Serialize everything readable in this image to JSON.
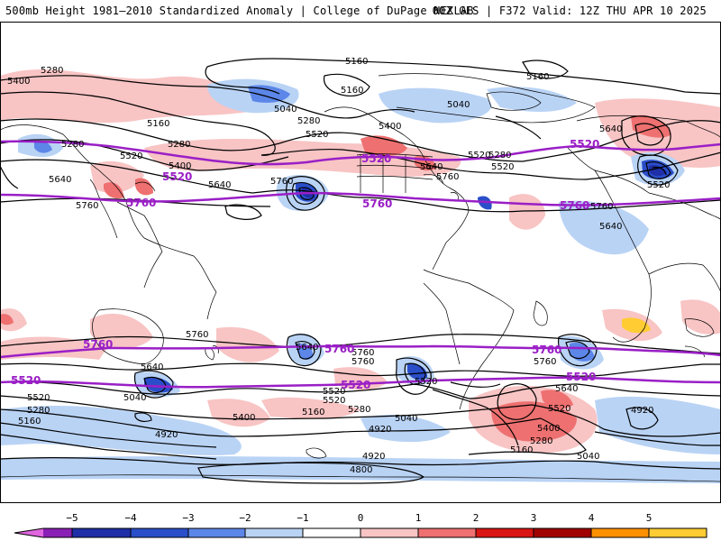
{
  "header": {
    "title": "500mb Height 1981–2010 Standardized Anomaly | College of DuPage NEXLAB",
    "run_info": "00Z GFS | F372 Valid: 12Z THU APR 10 2025"
  },
  "colorbar": {
    "ticks": [
      "−5",
      "−4",
      "−3",
      "−2",
      "−1",
      "0",
      "1",
      "2",
      "3",
      "4",
      "5"
    ],
    "colors": [
      "#e066e0",
      "#8a1fb5",
      "#1f2fa8",
      "#2a4ec9",
      "#5c86e8",
      "#b9d3f5",
      "#ffffff",
      "#f8c4c4",
      "#ee7070",
      "#d81414",
      "#a00000",
      "#ff9000",
      "#ffcc33"
    ]
  },
  "contour_labels": [
    {
      "text": "5160"
    },
    {
      "text": "5160"
    },
    {
      "text": "5160"
    },
    {
      "text": "5160"
    },
    {
      "text": "5040"
    },
    {
      "text": "5040"
    },
    {
      "text": "5280"
    },
    {
      "text": "5280"
    },
    {
      "text": "5400"
    },
    {
      "text": "5400"
    },
    {
      "text": "5280"
    },
    {
      "text": "5280"
    },
    {
      "text": "5520"
    },
    {
      "text": "5400"
    },
    {
      "text": "5520"
    },
    {
      "text": "5640"
    },
    {
      "text": "5640"
    },
    {
      "text": "5760"
    },
    {
      "text": "5760"
    },
    {
      "text": "5640"
    },
    {
      "text": "5520"
    },
    {
      "text": "5520"
    },
    {
      "text": "5640"
    },
    {
      "text": "5760"
    },
    {
      "text": "5760"
    },
    {
      "text": "5280"
    },
    {
      "text": "5520"
    },
    {
      "text": "5760"
    },
    {
      "text": "5640"
    },
    {
      "text": "5760"
    },
    {
      "text": "5640"
    },
    {
      "text": "5040"
    },
    {
      "text": "5520"
    },
    {
      "text": "5280"
    },
    {
      "text": "5160"
    },
    {
      "text": "5400"
    },
    {
      "text": "5520"
    },
    {
      "text": "5280"
    },
    {
      "text": "5160"
    },
    {
      "text": "5040"
    },
    {
      "text": "4920"
    },
    {
      "text": "4920"
    },
    {
      "text": "4920"
    },
    {
      "text": "4800"
    },
    {
      "text": "5640"
    },
    {
      "text": "5520"
    },
    {
      "text": "5400"
    },
    {
      "text": "5280"
    },
    {
      "text": "5160"
    },
    {
      "text": "5040"
    },
    {
      "text": "4920"
    },
    {
      "text": "5760"
    },
    {
      "text": "5520"
    },
    {
      "text": "5760"
    },
    {
      "text": "5520"
    },
    {
      "text": "5640"
    }
  ],
  "highlight_labels": [
    {
      "text": "5520"
    },
    {
      "text": "5760"
    },
    {
      "text": "5520"
    },
    {
      "text": "5760"
    },
    {
      "text": "5520"
    },
    {
      "text": "5760"
    },
    {
      "text": "5520"
    },
    {
      "text": "5760"
    },
    {
      "text": "5760"
    },
    {
      "text": "5760"
    },
    {
      "text": "5520"
    },
    {
      "text": "5520"
    },
    {
      "text": "5520"
    },
    {
      "text": "5520"
    },
    {
      "text": "5760"
    }
  ]
}
